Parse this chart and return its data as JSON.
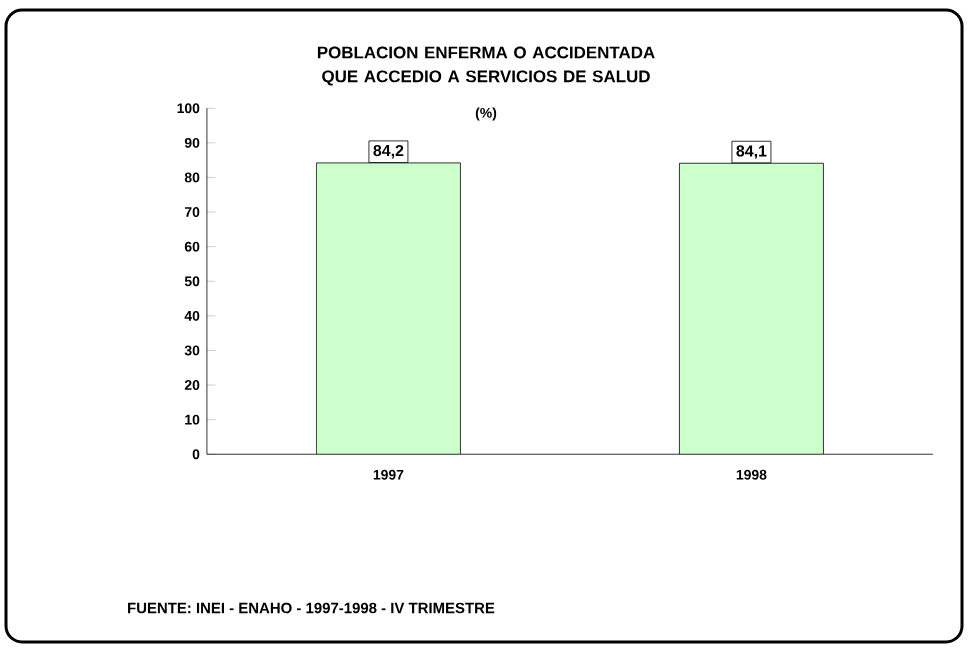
{
  "chart_data": {
    "type": "bar",
    "title": "POBLACION ENFERMA O ACCIDENTADA QUE ACCEDIO A SERVICIOS DE SALUD",
    "subtitle": "(%)",
    "categories": [
      "1997",
      "1998"
    ],
    "values": [
      84.2,
      84.1
    ],
    "value_labels": [
      "84,2",
      "84,1"
    ],
    "color": "#ccffcc",
    "ylim": [
      0,
      100
    ],
    "yticks": [
      0,
      10,
      20,
      30,
      40,
      50,
      60,
      70,
      80,
      90,
      100
    ],
    "annotations": [
      "FUENTE: INEI - ENAHO - 1997-1998 - IV TRIMESTRE"
    ]
  }
}
